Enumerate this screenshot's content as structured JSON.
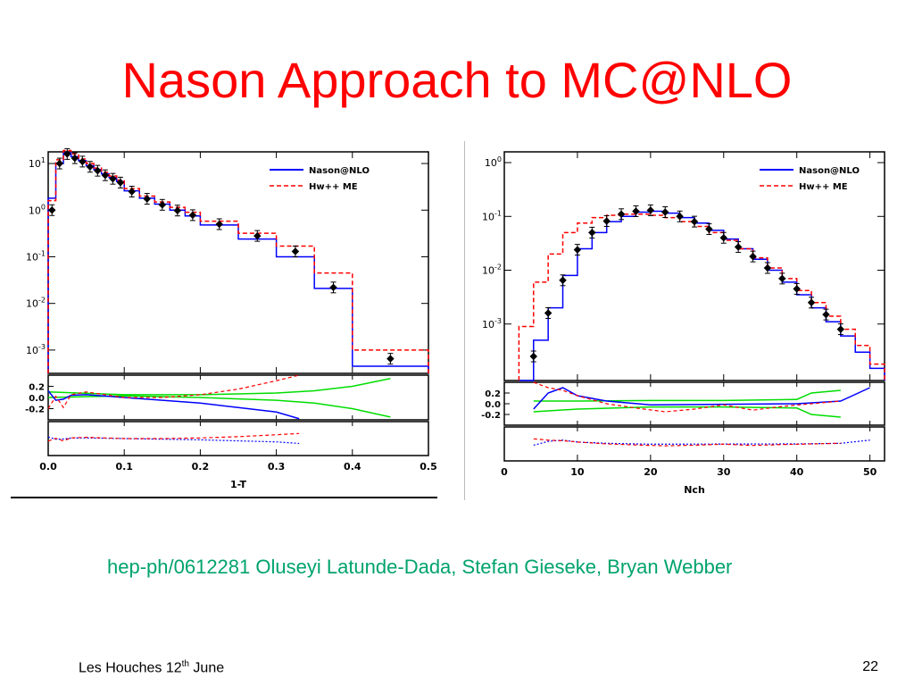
{
  "slide": {
    "title": "Nason Approach to MC@NLO",
    "reference": "hep-ph/0612281 Oluseyi Latunde-Dada, Stefan Gieseke, Bryan Webber",
    "footer_left_main": "Les Houches 12",
    "footer_left_sup": "th",
    "footer_left_end": " June",
    "page_number": "22"
  },
  "colors": {
    "title": "#ff0000",
    "reference": "#00a36c",
    "nason": "#0000ff",
    "hw": "#ff0000",
    "band": "#00dd00",
    "data": "#000000"
  },
  "chart_data": [
    {
      "type": "line",
      "xlabel": "1-T",
      "xlim": [
        0.0,
        0.5
      ],
      "ylim_log": [
        -3.5,
        1.25
      ],
      "yscale": "log",
      "xticks": [
        "0.0",
        "0.1",
        "0.2",
        "0.3",
        "0.4",
        "0.5"
      ],
      "xtick_values": [
        0.0,
        0.1,
        0.2,
        0.3,
        0.4,
        0.5
      ],
      "yticks": [
        "10^1",
        "10^0",
        "10^-1",
        "10^-2",
        "10^-3"
      ],
      "ytick_exponents": [
        1,
        0,
        -1,
        -2,
        -3
      ],
      "legend": [
        "Nason@NLO",
        "Hw++ ME"
      ],
      "legend_position": "top-right",
      "bin_edges": [
        0.0,
        0.01,
        0.02,
        0.03,
        0.04,
        0.05,
        0.06,
        0.07,
        0.08,
        0.09,
        0.1,
        0.12,
        0.14,
        0.16,
        0.18,
        0.2,
        0.25,
        0.3,
        0.35,
        0.4,
        0.5
      ],
      "series": [
        {
          "name": "Nason@NLO",
          "values": [
            1.8,
            10,
            17,
            14,
            11.5,
            9,
            7.4,
            6,
            5,
            4.1,
            2.6,
            1.8,
            1.35,
            1.0,
            0.75,
            0.48,
            0.24,
            0.1,
            0.021,
            0.00045
          ]
        },
        {
          "name": "Hw++ ME",
          "values": [
            1.6,
            12,
            19,
            16,
            12.5,
            10,
            8,
            6.5,
            5.4,
            4.4,
            2.9,
            2.0,
            1.5,
            1.15,
            0.9,
            0.58,
            0.32,
            0.17,
            0.045,
            0.001
          ]
        }
      ],
      "data_points": {
        "x": [
          0.005,
          0.015,
          0.025,
          0.035,
          0.045,
          0.055,
          0.065,
          0.075,
          0.085,
          0.095,
          0.11,
          0.13,
          0.15,
          0.17,
          0.19,
          0.225,
          0.275,
          0.325,
          0.375,
          0.45
        ],
        "y": [
          1.0,
          10,
          16,
          13,
          11,
          8.5,
          7,
          5.6,
          4.7,
          3.9,
          2.5,
          1.75,
          1.3,
          0.98,
          0.78,
          0.5,
          0.28,
          0.13,
          0.022,
          0.00065
        ]
      },
      "ratio_ticks": [
        "0.2",
        "0.0",
        "-0.2"
      ],
      "ratio_tick_values": [
        0.2,
        0.0,
        -0.2
      ],
      "ratio_range": [
        -0.4,
        0.4
      ],
      "ratio_nason": {
        "x": [
          0.0,
          0.01,
          0.02,
          0.03,
          0.05,
          0.1,
          0.15,
          0.2,
          0.25,
          0.3,
          0.33
        ],
        "y": [
          0.12,
          -0.05,
          -0.03,
          0.04,
          0.05,
          0.0,
          -0.05,
          -0.1,
          -0.18,
          -0.26,
          -0.38
        ]
      },
      "ratio_hw": {
        "x": [
          0.0,
          0.01,
          0.02,
          0.03,
          0.05,
          0.07,
          0.1,
          0.15,
          0.2,
          0.25,
          0.3,
          0.33
        ],
        "y": [
          -0.2,
          0.02,
          -0.18,
          0.05,
          0.1,
          0.06,
          0.0,
          0.0,
          0.05,
          0.15,
          0.3,
          0.4
        ]
      },
      "ratio_band_upper": {
        "x": [
          0.0,
          0.1,
          0.2,
          0.3,
          0.35,
          0.4,
          0.45
        ],
        "y": [
          0.1,
          0.05,
          0.05,
          0.08,
          0.12,
          0.2,
          0.34
        ]
      },
      "ratio_band_lower": {
        "x": [
          0.0,
          0.1,
          0.2,
          0.3,
          0.35,
          0.4,
          0.45
        ],
        "y": [
          0.0,
          0.03,
          0.0,
          -0.05,
          -0.1,
          -0.2,
          -0.35
        ]
      }
    },
    {
      "type": "line",
      "xlabel": "Nch",
      "xlim": [
        0,
        52
      ],
      "ylim_log": [
        -4.05,
        0.2
      ],
      "yscale": "log",
      "xticks": [
        "0",
        "10",
        "20",
        "30",
        "40",
        "50"
      ],
      "xtick_values": [
        0,
        10,
        20,
        30,
        40,
        50
      ],
      "yticks": [
        "10^0",
        "10^-1",
        "10^-2",
        "10^-3"
      ],
      "ytick_exponents": [
        0,
        -1,
        -2,
        -3
      ],
      "legend": [
        "Nason@NLO",
        "Hw++ ME"
      ],
      "legend_position": "top-right",
      "bin_edges": [
        2,
        4,
        6,
        8,
        10,
        12,
        14,
        16,
        18,
        20,
        22,
        24,
        26,
        28,
        30,
        32,
        34,
        36,
        38,
        40,
        42,
        44,
        46,
        48,
        50,
        52
      ],
      "series": [
        {
          "name": "Nason@NLO",
          "values": [
            8e-05,
            0.0005,
            0.002,
            0.008,
            0.025,
            0.05,
            0.08,
            0.1,
            0.12,
            0.125,
            0.115,
            0.095,
            0.075,
            0.055,
            0.038,
            0.025,
            0.016,
            0.01,
            0.006,
            0.0035,
            0.002,
            0.0011,
            0.0006,
            0.0003,
            0.00015
          ]
        },
        {
          "name": "Hw++ ME",
          "values": [
            0.0009,
            0.006,
            0.02,
            0.05,
            0.075,
            0.095,
            0.105,
            0.11,
            0.11,
            0.105,
            0.095,
            0.08,
            0.065,
            0.05,
            0.036,
            0.025,
            0.017,
            0.011,
            0.007,
            0.0042,
            0.0025,
            0.0014,
            0.0008,
            0.0004,
            0.00018
          ]
        }
      ],
      "data_points": {
        "x": [
          4,
          6,
          8,
          10,
          12,
          14,
          16,
          18,
          20,
          22,
          24,
          26,
          28,
          30,
          32,
          34,
          36,
          38,
          40,
          42,
          44,
          46
        ],
        "y": [
          0.00025,
          0.0016,
          0.0065,
          0.024,
          0.05,
          0.082,
          0.11,
          0.125,
          0.13,
          0.12,
          0.1,
          0.08,
          0.058,
          0.04,
          0.027,
          0.018,
          0.011,
          0.007,
          0.0045,
          0.0025,
          0.0015,
          0.0008
        ]
      },
      "ratio_ticks": [
        "0.2",
        "0.0",
        "-0.2"
      ],
      "ratio_tick_values": [
        0.2,
        0.0,
        -0.2
      ],
      "ratio_range": [
        -0.4,
        0.4
      ],
      "ratio_nason": {
        "x": [
          4,
          6,
          8,
          10,
          14,
          20,
          30,
          40,
          46,
          50
        ],
        "y": [
          -0.1,
          0.2,
          0.3,
          0.15,
          0.05,
          -0.02,
          -0.01,
          0.0,
          0.05,
          0.3
        ]
      },
      "ratio_hw": {
        "x": [
          4,
          6,
          8,
          10,
          14,
          18,
          22,
          26,
          30,
          34,
          38,
          42,
          46
        ],
        "y": [
          0.4,
          0.3,
          0.25,
          0.15,
          0.0,
          -0.08,
          -0.15,
          -0.1,
          -0.02,
          -0.12,
          -0.05,
          0.0,
          0.05
        ]
      },
      "ratio_band_upper": {
        "x": [
          4,
          10,
          20,
          30,
          40,
          42,
          46
        ],
        "y": [
          0.05,
          0.05,
          0.06,
          0.06,
          0.08,
          0.2,
          0.25
        ]
      },
      "ratio_band_lower": {
        "x": [
          4,
          10,
          20,
          30,
          40,
          42,
          46
        ],
        "y": [
          -0.15,
          -0.1,
          -0.06,
          -0.06,
          -0.08,
          -0.2,
          -0.25
        ]
      }
    }
  ]
}
